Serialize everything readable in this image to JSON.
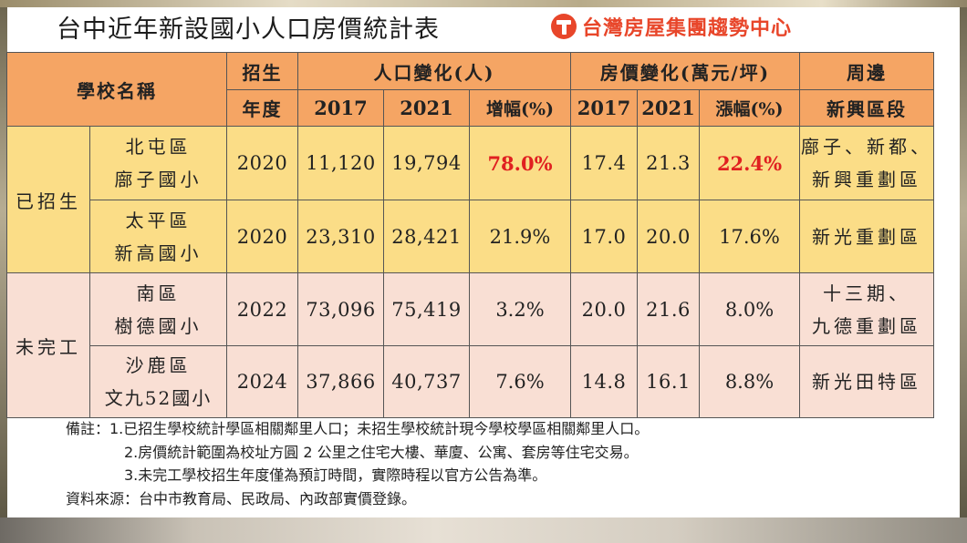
{
  "title": "台中近年新設國小人口房價統計表",
  "brand": {
    "icon": "taiwan-realty-logo",
    "name": "台灣房屋集團趨勢中心",
    "color": "#e8462a"
  },
  "colors": {
    "header_bg": "#f5a564",
    "enrolled_bg": "#fbdd87",
    "unfinished_bg": "#f9dfd4",
    "highlight": "#e02020"
  },
  "header": {
    "school_name": "學校名稱",
    "enroll_year_1": "招生",
    "enroll_year_2": "年度",
    "population": "人口變化(人)",
    "price": "房價變化(萬元/坪)",
    "nearby_1": "周邊",
    "nearby_2": "新興區段",
    "y2017": "2017",
    "y2021": "2021",
    "pop_growth": "增幅(%)",
    "y2017b": "2017",
    "y2021b": "2021",
    "price_growth": "漲幅(%)"
  },
  "groups": {
    "enrolled": "已招生",
    "unfinished": "未完工"
  },
  "rows": [
    {
      "district": "北屯區",
      "school": "廍子國小",
      "year": "2020",
      "pop2017": "11,120",
      "pop2021": "19,794",
      "pop_growth": "78.0%",
      "price2017": "17.4",
      "price2021": "21.3",
      "price_growth": "22.4%",
      "nearby_1": "廍子、新都、",
      "nearby_2": "新興重劃區"
    },
    {
      "district": "太平區",
      "school": "新高國小",
      "year": "2020",
      "pop2017": "23,310",
      "pop2021": "28,421",
      "pop_growth": "21.9%",
      "price2017": "17.0",
      "price2021": "20.0",
      "price_growth": "17.6%",
      "nearby_1": "新光重劃區",
      "nearby_2": ""
    },
    {
      "district": "南區",
      "school": "樹德國小",
      "year": "2022",
      "pop2017": "73,096",
      "pop2021": "75,419",
      "pop_growth": "3.2%",
      "price2017": "20.0",
      "price2021": "21.6",
      "price_growth": "8.0%",
      "nearby_1": "十三期、",
      "nearby_2": "九德重劃區"
    },
    {
      "district": "沙鹿區",
      "school": "文九52國小",
      "year": "2024",
      "pop2017": "37,866",
      "pop2021": "40,737",
      "pop_growth": "7.6%",
      "price2017": "14.8",
      "price2021": "16.1",
      "price_growth": "8.8%",
      "nearby_1": "新光田特區",
      "nearby_2": ""
    }
  ],
  "notes": {
    "line1": "備註：1.已招生學校統計學區相關鄰里人口；未招生學校統計現今學校學區相關鄰里人口。",
    "line2": "2.房價統計範圍為校址方圓 2 公里之住宅大樓、華廈、公寓、套房等住宅交易。",
    "line3": "3.未完工學校招生年度僅為預訂時間，實際時程以官方公告為準。",
    "source": "資料來源：台中市教育局、民政局、內政部實價登錄。"
  }
}
